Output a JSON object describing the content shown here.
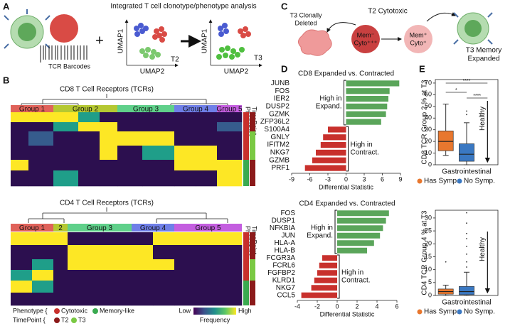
{
  "panel_labels": [
    "A",
    "B",
    "C",
    "D",
    "E"
  ],
  "panel_a": {
    "title": "Integrated T cell clonotype/phenotype analysis",
    "barcode_label": "TCR Barcodes",
    "plus": "+",
    "umap_y": "UMAP1",
    "umap_x": "UMAP2",
    "t2": "T2",
    "t3": "T3"
  },
  "panel_b": {
    "cd8": {
      "title": "CD8 T Cell Receptors (TCRs)",
      "groups": [
        "Group 1",
        "Group 2",
        "Group 3",
        "Group 4",
        "Group 5"
      ]
    },
    "cd4": {
      "title": "CD4 T Cell Receptors (TCRs)",
      "groups": [
        "Group 1",
        "2",
        "Group 3",
        "Group 4",
        "Group 5"
      ]
    },
    "phenotype": "Phenotype",
    "timepoint": "TimePoint",
    "legend": {
      "phenotype_label": "Phenotype {",
      "phenotypes": [
        "Cytotoxic",
        "Memory-like"
      ],
      "timepoint_label": "TimePoint {",
      "timepoints": [
        "T2",
        "T3"
      ],
      "low": "Low",
      "high": "High",
      "scale_label": "Frequency"
    }
  },
  "panel_c": {
    "deleted": [
      "T3 Clonally",
      "Deleted"
    ],
    "cytotoxic": "T2 Cytotoxic",
    "cell_a": [
      "Mem⁻",
      "Cyto⁺⁺⁺"
    ],
    "cell_b": [
      "Mem⁺",
      "Cyto⁺"
    ],
    "expanded": [
      "T3 Memory",
      "Expanded"
    ]
  },
  "chart_data": [
    {
      "type": "bar",
      "title": "CD8 Expanded vs. Contracted",
      "xlabel": "Differential Statistic",
      "categories": [
        "JUNB",
        "FOS",
        "IER2",
        "DUSP2",
        "GZMK",
        "ZFP36L2",
        "S100A4",
        "GNLY",
        "IFITM2",
        "NKG7",
        "GZMB",
        "PRF1"
      ],
      "values": [
        8.8,
        7.2,
        7.0,
        6.8,
        6.6,
        5.8,
        -3.0,
        -3.8,
        -4.2,
        -5.0,
        -5.6,
        -6.8
      ],
      "xlim": [
        -9,
        9
      ],
      "xticks": [
        -9,
        -6,
        -3,
        0,
        3,
        6,
        9
      ],
      "positive_color": "#5aa55a",
      "negative_color": "#c8302c",
      "annotations": [
        [
          "High in",
          "Expand."
        ],
        [
          "High in",
          "Contract."
        ]
      ]
    },
    {
      "type": "bar",
      "title": "CD4 Expanded vs. Contracted",
      "xlabel": "Differential Statistic",
      "categories": [
        "FOS",
        "DUSP1",
        "NFKBIA",
        "JUN",
        "HLA-A",
        "HLA-B",
        "FCGR3A",
        "FCRL6",
        "FGFBP2",
        "KLRD1",
        "NKG7",
        "CCL5"
      ],
      "values": [
        5.2,
        4.9,
        4.6,
        4.3,
        3.7,
        3.0,
        -1.5,
        -1.8,
        -2.0,
        -2.3,
        -2.6,
        -3.6
      ],
      "xlim": [
        -4,
        6
      ],
      "xticks": [
        -4,
        -2,
        0,
        2,
        4,
        6
      ],
      "positive_color": "#5aa55a",
      "negative_color": "#c8302c",
      "annotations": [
        [
          "High in",
          "Expand."
        ],
        [
          "High in",
          "Contract."
        ]
      ]
    },
    {
      "type": "box",
      "ylabel": "CD8 TCR Group 2 % at T3",
      "xlabel": "Gastrointestinal",
      "ylim": [
        0,
        73
      ],
      "yticks": [
        0,
        10,
        20,
        30,
        40,
        50,
        60,
        70
      ],
      "series": [
        {
          "name": "Has Symp.",
          "color": "#e8772e",
          "whislo": 8,
          "q1": 12,
          "median": 20,
          "q3": 29,
          "whishi": 52,
          "fliers": []
        },
        {
          "name": "No Symp.",
          "color": "#3a78c2",
          "whislo": 0,
          "q1": 3,
          "median": 9,
          "q3": 18,
          "whishi": 36,
          "fliers": [
            43,
            46
          ]
        }
      ],
      "significance": [
        "****",
        "*",
        "****"
      ],
      "reference_label": "Healthy"
    },
    {
      "type": "box",
      "ylabel": "CD4 TCR Group 4 % at T3",
      "xlabel": "Gastrointestinal",
      "ylim": [
        0,
        33
      ],
      "yticks": [
        0,
        5,
        10,
        15,
        20,
        25,
        30
      ],
      "series": [
        {
          "name": "Has Symp.",
          "color": "#e8772e",
          "whislo": 0,
          "q1": 0.5,
          "median": 1.5,
          "q3": 2.5,
          "whishi": 4,
          "fliers": [
            13
          ]
        },
        {
          "name": "No Symp.",
          "color": "#3a78c2",
          "whislo": 0,
          "q1": 0.3,
          "median": 1.5,
          "q3": 3.5,
          "whishi": 9,
          "fliers": [
            11,
            13,
            16,
            19,
            22,
            24,
            28,
            32
          ]
        }
      ],
      "reference_label": "Healthy"
    }
  ]
}
